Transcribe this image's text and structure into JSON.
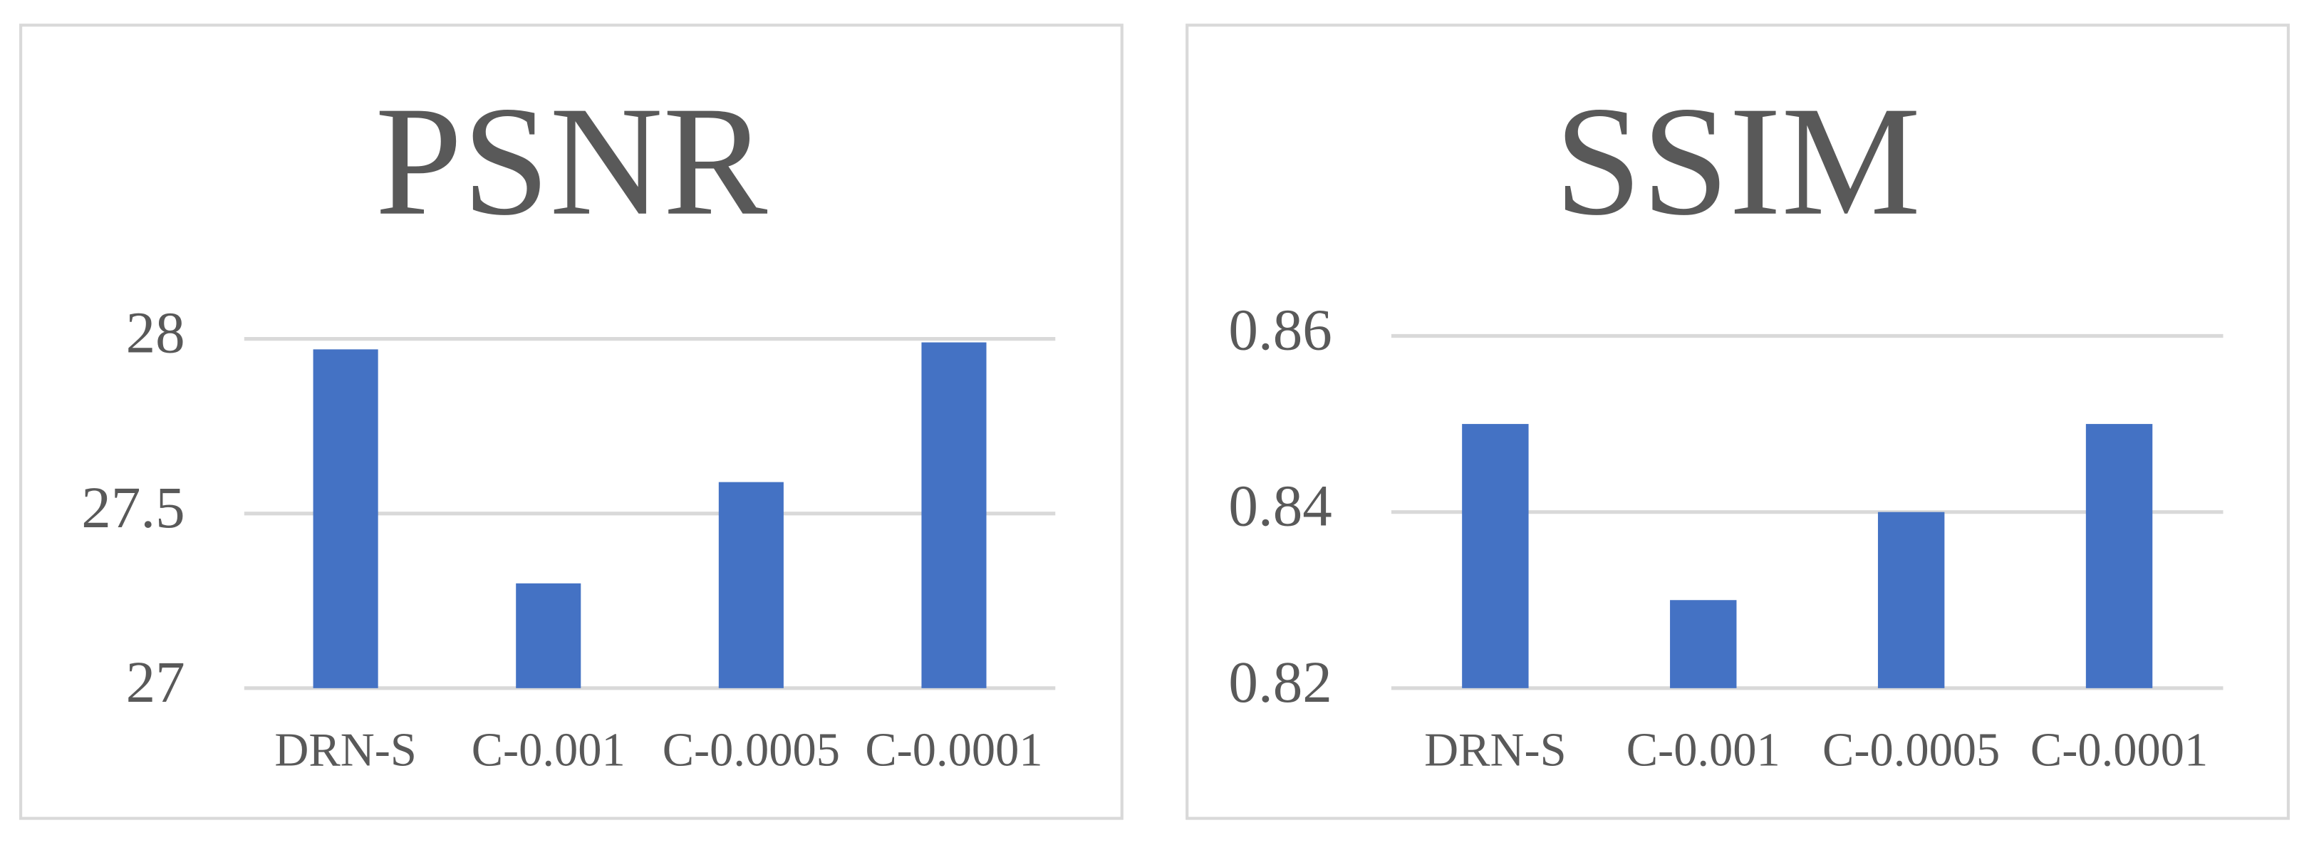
{
  "chart_data": [
    {
      "type": "bar",
      "title": "PSNR",
      "categories": [
        "DRN-S",
        "C-0.001",
        "C-0.0005",
        "C-0.0001"
      ],
      "values": [
        27.97,
        27.3,
        27.59,
        27.99
      ],
      "color": "#4472c4",
      "ylim": [
        27,
        28
      ],
      "yticks": [
        27,
        27.5,
        28
      ],
      "grid": true
    },
    {
      "type": "bar",
      "title": "SSIM",
      "categories": [
        "DRN-S",
        "C-0.001",
        "C-0.0005",
        "C-0.0001"
      ],
      "values": [
        0.85,
        0.83,
        0.84,
        0.85
      ],
      "color": "#4472c4",
      "ylim": [
        0.82,
        0.86
      ],
      "yticks": [
        0.82,
        0.84,
        0.86
      ],
      "grid": true
    }
  ]
}
